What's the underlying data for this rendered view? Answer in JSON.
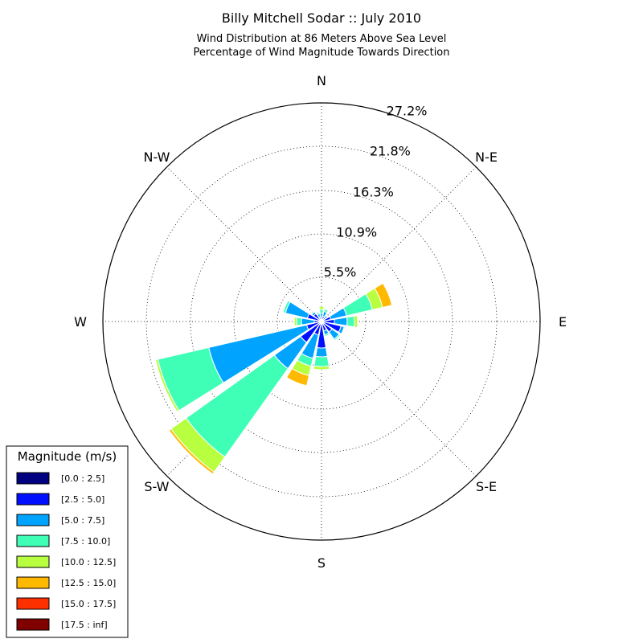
{
  "chart_data": {
    "type": "windrose",
    "title": "Billy Mitchell Sodar :: July 2010",
    "subtitle_lines": [
      "Wind Distribution at 86 Meters Above Sea Level",
      "Percentage of Wind Magnitude Towards Direction"
    ],
    "direction_labels": [
      "N",
      "N-E",
      "E",
      "S-E",
      "S",
      "S-W",
      "W",
      "N-W"
    ],
    "radial_ticks": [
      5.5,
      10.9,
      16.3,
      21.8,
      27.2
    ],
    "radial_tick_labels": [
      "5.5%",
      "10.9%",
      "16.3%",
      "21.8%",
      "27.2%"
    ],
    "rmax": 27.2,
    "grid": true,
    "legend": {
      "title": "Magnitude (m/s)",
      "placement": "bottom-left",
      "bins": [
        {
          "label": "[0.0 : 2.5]",
          "color": "#000080"
        },
        {
          "label": "[2.5 : 5.0]",
          "color": "#0010ff"
        },
        {
          "label": "[5.0 : 7.5]",
          "color": "#00a4ff"
        },
        {
          "label": "[7.5 : 10.0]",
          "color": "#3fffb7"
        },
        {
          "label": "[10.0 : 12.5]",
          "color": "#b7ff3f"
        },
        {
          "label": "[12.5 : 15.0]",
          "color": "#ffb900"
        },
        {
          "label": "[15.0 : 17.5]",
          "color": "#ff3000"
        },
        {
          "label": "[17.5 : inf]",
          "color": "#800000"
        }
      ]
    },
    "sectors": [
      {
        "direction_deg": 0,
        "values": [
          0.1,
          0.4,
          0.5,
          0.5,
          0.4,
          0,
          0,
          0
        ]
      },
      {
        "direction_deg": 22.5,
        "values": [
          0.1,
          0.6,
          0.6,
          0.3,
          0.1,
          0,
          0,
          0
        ]
      },
      {
        "direction_deg": 45,
        "values": [
          0.1,
          0.5,
          0.3,
          0.1,
          0,
          0,
          0,
          0
        ]
      },
      {
        "direction_deg": 67.5,
        "values": [
          0.2,
          1.0,
          2.0,
          3.3,
          1.3,
          1.2,
          0,
          0
        ]
      },
      {
        "direction_deg": 90,
        "values": [
          0.2,
          1.4,
          1.6,
          0.9,
          0.4,
          0,
          0,
          0
        ]
      },
      {
        "direction_deg": 112.5,
        "values": [
          0.2,
          2.3,
          0.4,
          0.1,
          0,
          0,
          0,
          0
        ]
      },
      {
        "direction_deg": 135,
        "values": [
          0.2,
          1.4,
          1.1,
          0.2,
          0,
          0,
          0,
          0
        ]
      },
      {
        "direction_deg": 157.5,
        "values": [
          0.2,
          1.0,
          0.5,
          0.2,
          0,
          0,
          0,
          0
        ]
      },
      {
        "direction_deg": 180,
        "values": [
          0.3,
          3.0,
          1.1,
          1.2,
          0.4,
          0,
          0,
          0
        ]
      },
      {
        "direction_deg": 202.5,
        "values": [
          0.2,
          1.5,
          3.0,
          1.0,
          1.2,
          1.3,
          0,
          0
        ]
      },
      {
        "direction_deg": 225,
        "values": [
          0.2,
          3.0,
          4.0,
          13.5,
          2.3,
          0.3,
          0,
          0
        ]
      },
      {
        "direction_deg": 247.5,
        "values": [
          0.1,
          1.8,
          12.5,
          6.5,
          0.3,
          0.1,
          0,
          0
        ]
      },
      {
        "direction_deg": 270,
        "values": [
          0.1,
          0.8,
          1.6,
          0.6,
          0.3,
          0,
          0,
          0
        ]
      },
      {
        "direction_deg": 292.5,
        "values": [
          0.1,
          1.7,
          2.8,
          0.3,
          0,
          0,
          0,
          0
        ]
      },
      {
        "direction_deg": 315,
        "values": [
          0.2,
          1.0,
          0.3,
          0.1,
          0,
          0,
          0,
          0
        ]
      },
      {
        "direction_deg": 337.5,
        "values": [
          0.1,
          0.5,
          0.4,
          0.2,
          0,
          0,
          0,
          0
        ]
      }
    ]
  }
}
